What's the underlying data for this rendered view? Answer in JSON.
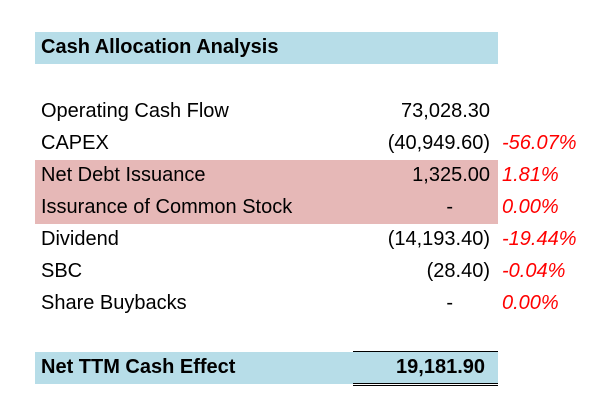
{
  "title": "Cash Allocation Analysis",
  "rows": [
    {
      "label": "Operating Cash Flow",
      "value": "73,028.30",
      "pct": ""
    },
    {
      "label": "CAPEX",
      "value": "(40,949.60)",
      "pct": "-56.07%"
    },
    {
      "label": "Net Debt Issuance",
      "value": "1,325.00",
      "pct": "1.81%"
    },
    {
      "label": "Issurance of Common Stock",
      "value": "-",
      "pct": "0.00%"
    },
    {
      "label": "Dividend",
      "value": "(14,193.40)",
      "pct": "-19.44%"
    },
    {
      "label": "SBC",
      "value": "(28.40)",
      "pct": "-0.04%"
    },
    {
      "label": "Share Buybacks",
      "value": "-",
      "pct": "0.00%"
    }
  ],
  "total": {
    "label": "Net TTM Cash Effect",
    "value": "19,181.90"
  },
  "colors": {
    "header_fill": "#b7dde8",
    "highlight_fill": "#e6b8b7",
    "negative_pct": "#ff0000"
  }
}
